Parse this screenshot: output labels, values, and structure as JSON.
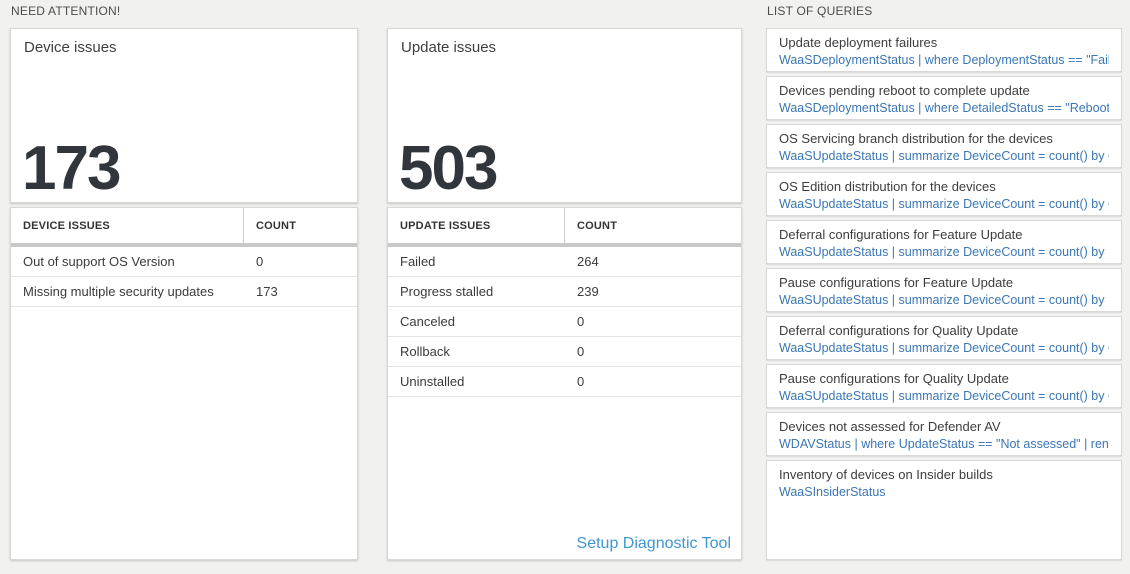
{
  "section_headers": {
    "left": "NEED ATTENTION!",
    "right": "LIST OF QUERIES"
  },
  "colors": {
    "page_background": "#f1f1f0",
    "card_background": "#ffffff",
    "card_border": "#d7d7d7",
    "big_number_color": "#30363c",
    "table_divider_bar": "#c8c8c8",
    "query_text_blue": "#3b76b5",
    "footer_link_blue": "#3e96d2"
  },
  "device_tile": {
    "title": "Device issues",
    "count": "173",
    "table": {
      "headers": [
        "DEVICE ISSUES",
        "COUNT"
      ],
      "rows": [
        {
          "label": "Out of support OS Version",
          "count": "0"
        },
        {
          "label": "Missing multiple security updates",
          "count": "173"
        }
      ]
    }
  },
  "update_tile": {
    "title": "Update issues",
    "count": "503",
    "table": {
      "headers": [
        "UPDATE ISSUES",
        "COUNT"
      ],
      "rows": [
        {
          "label": "Failed",
          "count": "264"
        },
        {
          "label": "Progress stalled",
          "count": "239"
        },
        {
          "label": "Canceled",
          "count": "0"
        },
        {
          "label": "Rollback",
          "count": "0"
        },
        {
          "label": "Uninstalled",
          "count": "0"
        }
      ]
    },
    "footer_link": "Setup Diagnostic Tool"
  },
  "queries": [
    {
      "title": "Update deployment failures",
      "query": "WaaSDeploymentStatus | where DeploymentStatus == \"Failed\" |..."
    },
    {
      "title": "Devices pending reboot to complete update",
      "query": "WaaSDeploymentStatus | where DetailedStatus == \"Reboot pend..."
    },
    {
      "title": "OS Servicing branch distribution for the devices",
      "query": "WaaSUpdateStatus | summarize DeviceCount = count() by OSSer..."
    },
    {
      "title": "OS Edition distribution for the devices",
      "query": "WaaSUpdateStatus | summarize DeviceCount = count() by OSEdit..."
    },
    {
      "title": "Deferral configurations for Feature Update",
      "query": "WaaSUpdateStatus | summarize DeviceCount = count() by Featur..."
    },
    {
      "title": "Pause configurations for Feature Update",
      "query": "WaaSUpdateStatus | summarize DeviceCount = count() by Featur..."
    },
    {
      "title": "Deferral configurations for Quality Update",
      "query": "WaaSUpdateStatus | summarize DeviceCount = count() by Qualit..."
    },
    {
      "title": "Pause configurations for Quality Update",
      "query": "WaaSUpdateStatus | summarize DeviceCount = count() by Qualit..."
    },
    {
      "title": "Devices not assessed for Defender AV",
      "query": "WDAVStatus | where UpdateStatus == \"Not assessed\" | render ta..."
    },
    {
      "title": "Inventory of devices on Insider builds",
      "query": "WaaSInsiderStatus"
    }
  ]
}
